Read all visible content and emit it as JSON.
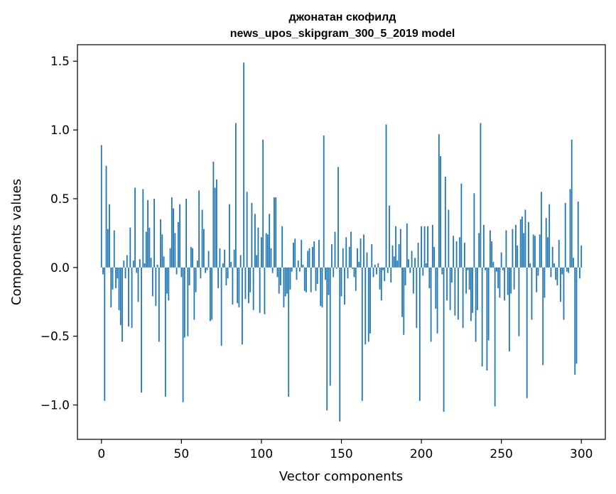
{
  "chart_data": {
    "type": "bar",
    "title": "джонатан скофилд",
    "subtitle": "news_upos_skipgram_300_5_2019 model",
    "xlabel": "Vector components",
    "ylabel": "Components values",
    "xlim": [
      -15,
      315
    ],
    "ylim": [
      -1.25,
      1.62
    ],
    "xticks": [
      0,
      50,
      100,
      150,
      200,
      250,
      300
    ],
    "xtick_labels": [
      "0",
      "50",
      "100",
      "150",
      "200",
      "250",
      "300"
    ],
    "yticks": [
      -1.0,
      -0.5,
      0.0,
      0.5,
      1.0,
      1.5
    ],
    "ytick_labels": [
      "−1.0",
      "−0.5",
      "0.0",
      "0.5",
      "1.0",
      "1.5"
    ],
    "grid": false,
    "bar_color": "#1f77b4",
    "values": [
      0.89,
      -0.05,
      -0.97,
      0.74,
      0.28,
      0.46,
      -0.29,
      -0.16,
      0.27,
      -0.15,
      -0.08,
      -0.31,
      -0.42,
      -0.54,
      0.05,
      -0.08,
      0.09,
      -0.43,
      0.29,
      -0.44,
      0.05,
      0.58,
      -0.04,
      -0.25,
      0.06,
      -0.91,
      0.57,
      0.03,
      0.26,
      0.49,
      0.29,
      0.07,
      -0.21,
      0.5,
      -0.28,
      0.02,
      -0.54,
      0.35,
      0.24,
      0.08,
      -0.94,
      -0.19,
      -0.24,
      0.14,
      0.51,
      0.43,
      0.25,
      -0.05,
      0.33,
      0.46,
      -0.07,
      -0.98,
      -0.51,
      0.5,
      -0.5,
      -0.13,
      0.15,
      0.14,
      -0.38,
      -0.18,
      0.05,
      0.56,
      -0.08,
      0.42,
      0.28,
      -0.04,
      -0.02,
      0.12,
      -0.39,
      -0.38,
      0.77,
      0.58,
      0.64,
      -0.15,
      0.14,
      -0.57,
      0.03,
      0.13,
      -0.13,
      -0.08,
      0.46,
      0.04,
      -0.27,
      0.13,
      1.05,
      -0.26,
      -0.29,
      0.09,
      -0.56,
      1.49,
      -0.23,
      0.55,
      -0.26,
      -0.18,
      0.47,
      -0.31,
      0.39,
      0.09,
      0.29,
      -0.33,
      0.22,
      0.93,
      -0.34,
      0.25,
      0.24,
      0.39,
      0.14,
      -0.04,
      0.51,
      0.51,
      -0.07,
      -0.19,
      -0.13,
      0.3,
      -0.29,
      -0.21,
      -0.19,
      -0.94,
      -0.16,
      -0.03,
      0.18,
      0.21,
      -0.09,
      0.05,
      -0.03,
      0.2,
      0.02,
      -0.17,
      -0.18,
      0.12,
      0.14,
      -0.18,
      0.15,
      0.19,
      -0.17,
      -0.12,
      0.2,
      -0.28,
      -0.29,
      0.96,
      -0.09,
      -1.04,
      -0.2,
      -0.86,
      0.17,
      -0.07,
      0.26,
      -0.01,
      0.73,
      -1.12,
      -0.21,
      0.14,
      -0.27,
      0.22,
      -0.08,
      0.15,
      0.26,
      -0.01,
      -0.07,
      -0.17,
      0.14,
      0.04,
      0.21,
      -0.97,
      0.24,
      -0.56,
      0.11,
      -0.54,
      -0.48,
      0.17,
      -0.07,
      0.02,
      -0.05,
      0.03,
      -0.16,
      -0.24,
      -0.02,
      -0.1,
      1.04,
      -0.04,
      0.45,
      -0.11,
      0.16,
      0.08,
      0.3,
      0.05,
      0.17,
      0.28,
      -0.36,
      -0.49,
      -0.13,
      0.32,
      0.06,
      -0.04,
      0.12,
      -0.19,
      0.07,
      -0.44,
      0.18,
      -0.97,
      0.3,
      -0.06,
      0.3,
      0.03,
      0.3,
      -0.15,
      -0.54,
      0.31,
      0.15,
      -0.3,
      -0.48,
      0.97,
      0.81,
      -0.05,
      -1.05,
      0.66,
      -0.24,
      0.42,
      -0.31,
      -0.11,
      0.23,
      -0.35,
      0.19,
      -0.38,
      0.22,
      0.61,
      -0.44,
      0.18,
      -0.19,
      -0.02,
      -0.16,
      -0.39,
      -0.33,
      0.54,
      -0.54,
      -0.31,
      0.25,
      1.05,
      -0.72,
      0.31,
      -0.02,
      -0.75,
      -0.53,
      0.27,
      0.19,
      0.04,
      -1.01,
      -0.03,
      -0.15,
      -0.22,
      0.11,
      -0.02,
      -0.24,
      0.27,
      -0.2,
      -0.61,
      -0.19,
      0.28,
      -0.16,
      0.31,
      0.16,
      -0.5,
      0.35,
      0.37,
      0.25,
      0.42,
      -0.95,
      0.33,
      0.03,
      -0.38,
      0.24,
      0.23,
      -0.18,
      -0.06,
      0.24,
      0.55,
      -0.71,
      -0.22,
      0.36,
      0.22,
      0.46,
      -0.07,
      0.15,
      0.03,
      -0.09,
      -0.13,
      0.2,
      -0.25,
      -0.05,
      -0.38,
      0.47,
      -0.03,
      -0.04,
      0.57,
      0.93,
      0.07,
      -0.78,
      -0.7,
      0.48,
      -0.08,
      0.16
    ]
  }
}
